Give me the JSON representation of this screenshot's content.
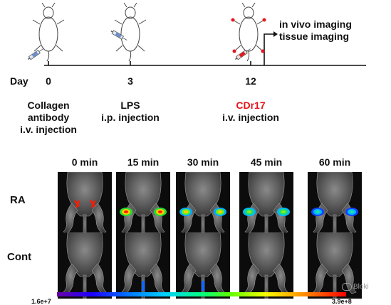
{
  "timeline": {
    "axis_label": "Day",
    "days": [
      {
        "day": "0",
        "label_lines": [
          "Collagen",
          "antibody",
          "i.v. injection"
        ],
        "highlight": ""
      },
      {
        "day": "3",
        "label_lines": [
          "LPS",
          "i.p. injection"
        ],
        "highlight": ""
      },
      {
        "day": "12",
        "label_lines": [
          "i.v. injection"
        ],
        "highlight": "CDr17"
      }
    ],
    "endpoint_lines": [
      "in vivo imaging",
      "tissue imaging"
    ],
    "highlight_color": "#e8141c"
  },
  "imaging": {
    "time_points": [
      "0 min",
      "15 min",
      "30 min",
      "45 min",
      "60 min"
    ],
    "rows": [
      {
        "label": "RA",
        "signal_levels": [
          0.95,
          0.9,
          0.75,
          0.55,
          0.4
        ]
      },
      {
        "label": "Cont",
        "signal_levels": [
          0.0,
          0.2,
          0.12,
          0.0,
          0.0
        ]
      }
    ]
  },
  "colorbar": {
    "min_label": "1.6e+7",
    "max_label": "3.9e+8"
  },
  "watermark": {
    "text": "Bloki",
    "icon": "wechat-icon"
  }
}
